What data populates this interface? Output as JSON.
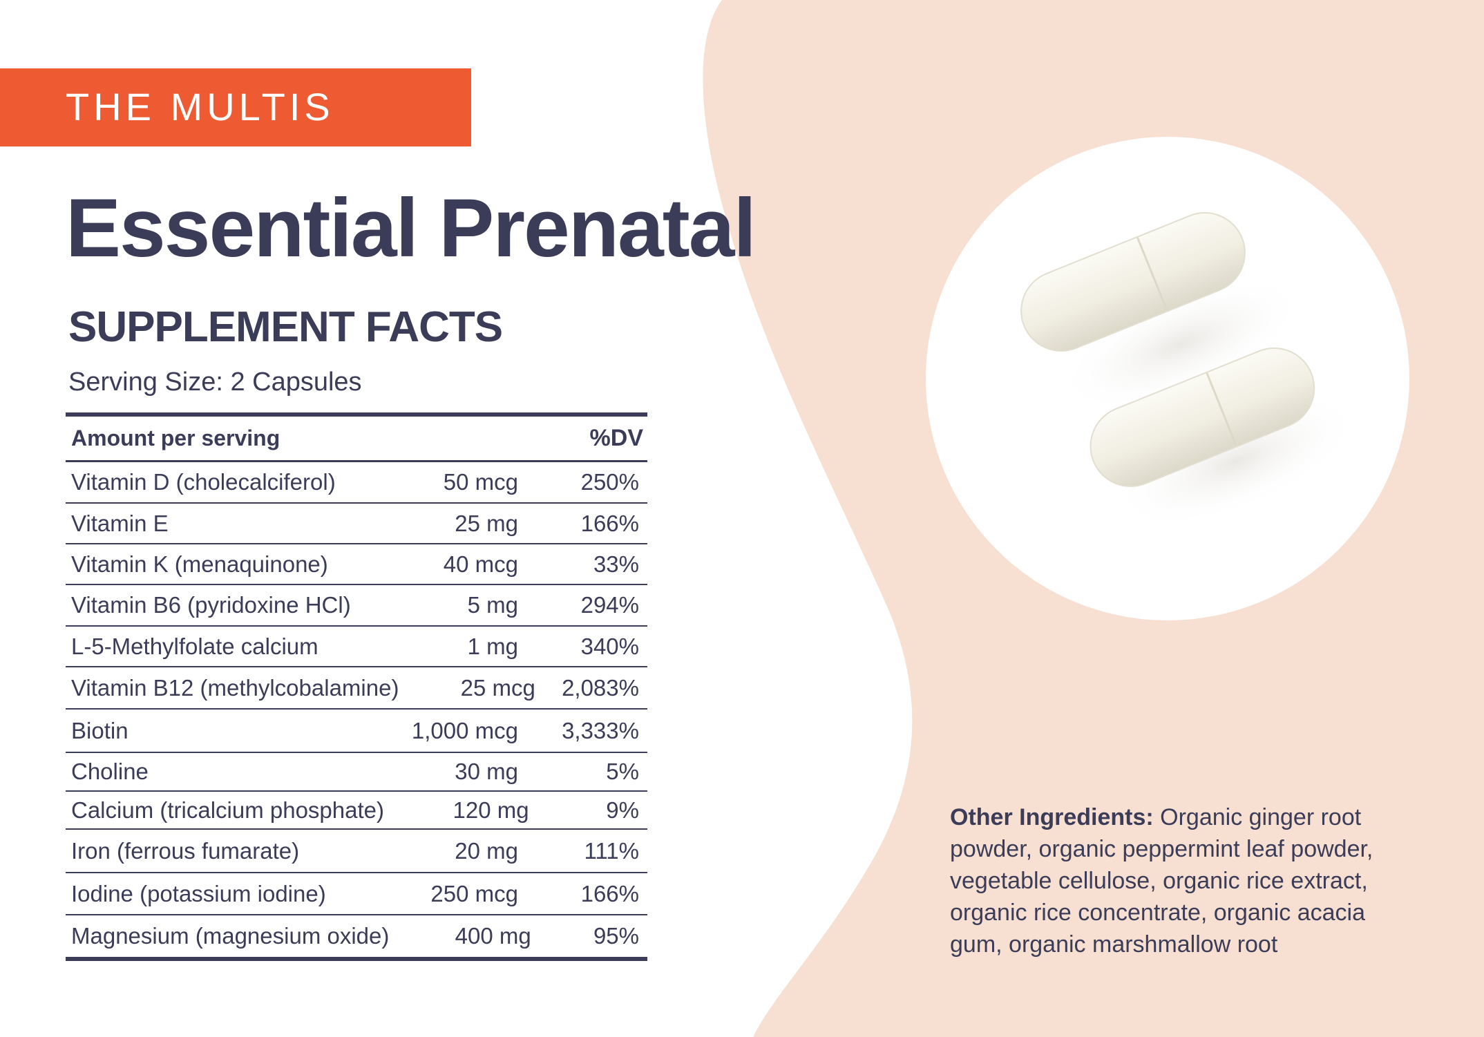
{
  "brand": {
    "label": "THE MULTIS"
  },
  "product": {
    "name": "Essential Prenatal"
  },
  "facts": {
    "title": "SUPPLEMENT FACTS",
    "serving_size": "Serving Size: 2 Capsules",
    "header_amount": "Amount per serving",
    "header_dv": "%DV",
    "rows": [
      {
        "name": "Vitamin D (cholecalciferol)",
        "amount": "50 mcg",
        "dv": "250%"
      },
      {
        "name": "Vitamin E",
        "amount": "25 mg",
        "dv": "166%"
      },
      {
        "name": "Vitamin K (menaquinone)",
        "amount": "40 mcg",
        "dv": "33%"
      },
      {
        "name": "Vitamin B6 (pyridoxine HCl)",
        "amount": "5 mg",
        "dv": "294%"
      },
      {
        "name": "L-5-Methylfolate calcium",
        "amount": "1 mg",
        "dv": "340%"
      },
      {
        "name": "Vitamin B12 (methylcobalamine)",
        "amount": "25 mcg",
        "dv": "2,083%"
      },
      {
        "name": "Biotin",
        "amount": "1,000 mcg",
        "dv": "3,333%"
      },
      {
        "name": "Choline",
        "amount": "30 mg",
        "dv": "5%"
      },
      {
        "name": "Calcium (tricalcium phosphate)",
        "amount": "120 mg",
        "dv": "9%"
      },
      {
        "name": "Iron (ferrous fumarate)",
        "amount": "20 mg",
        "dv": "111%"
      },
      {
        "name": "Iodine (potassium iodine)",
        "amount": "250 mcg",
        "dv": "166%"
      },
      {
        "name": "Magnesium (magnesium oxide)",
        "amount": "400 mg",
        "dv": "95%"
      }
    ]
  },
  "ingredients": {
    "label": "Other Ingredients:",
    "text": "Organic ginger root powder, organic peppermint leaf powder, vegetable cellulose, organic rice extract, organic rice concentrate, organic acacia gum, organic marshmallow root"
  },
  "colors": {
    "brand_orange": "#ee5a32",
    "text_navy": "#3b3c57",
    "peach_background": "#f7dfd2"
  },
  "images": {
    "capsules": "capsule-pills-image"
  }
}
